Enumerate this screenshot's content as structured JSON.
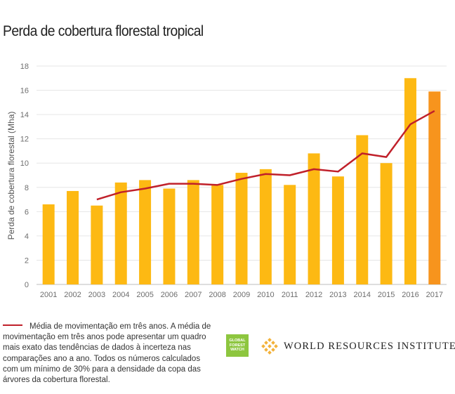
{
  "title": "Perda de cobertura florestal tropical",
  "chart_data": {
    "type": "bar",
    "title": "Perda de cobertura florestal tropical",
    "xlabel": "",
    "ylabel": "Perda de cobertura florestal (Mha)",
    "ylim": [
      0,
      18
    ],
    "yticks": [
      0,
      2,
      4,
      6,
      8,
      10,
      12,
      14,
      16,
      18
    ],
    "grid": true,
    "categories": [
      "2001",
      "2002",
      "2003",
      "2004",
      "2005",
      "2006",
      "2007",
      "2008",
      "2009",
      "2010",
      "2011",
      "2012",
      "2013",
      "2014",
      "2015",
      "2016",
      "2017"
    ],
    "series": [
      {
        "name": "Perda de cobertura florestal",
        "type": "bar",
        "color": "#fdb913",
        "highlight_color": "#f7941d",
        "highlight_category": "2017",
        "values": [
          6.6,
          7.7,
          6.5,
          8.4,
          8.6,
          7.9,
          8.6,
          8.2,
          9.2,
          9.5,
          8.2,
          10.8,
          8.9,
          12.3,
          10.0,
          17.0,
          15.9
        ]
      },
      {
        "name": "Média de movimentação em três anos",
        "type": "line",
        "color": "#c0202a",
        "values": [
          null,
          null,
          7.0,
          7.6,
          7.9,
          8.3,
          8.3,
          8.2,
          8.7,
          9.1,
          9.0,
          9.5,
          9.3,
          10.8,
          10.5,
          13.2,
          14.3
        ]
      }
    ]
  },
  "legend": {
    "line_label": "Média de movimentação em três anos.",
    "note": "A média de movimentação em três anos pode apresentar um quadro mais exato das tendências de dados à incerteza nas comparações ano a ano. Todos os números calculados com um mínimo de 30% para a densidade da copa das árvores da cobertura florestal."
  },
  "logos": {
    "gfw_line1": "GLOBAL",
    "gfw_line2": "FOREST",
    "gfw_line3": "WATCH",
    "wri": "WORLD RESOURCES INSTITUTE"
  }
}
